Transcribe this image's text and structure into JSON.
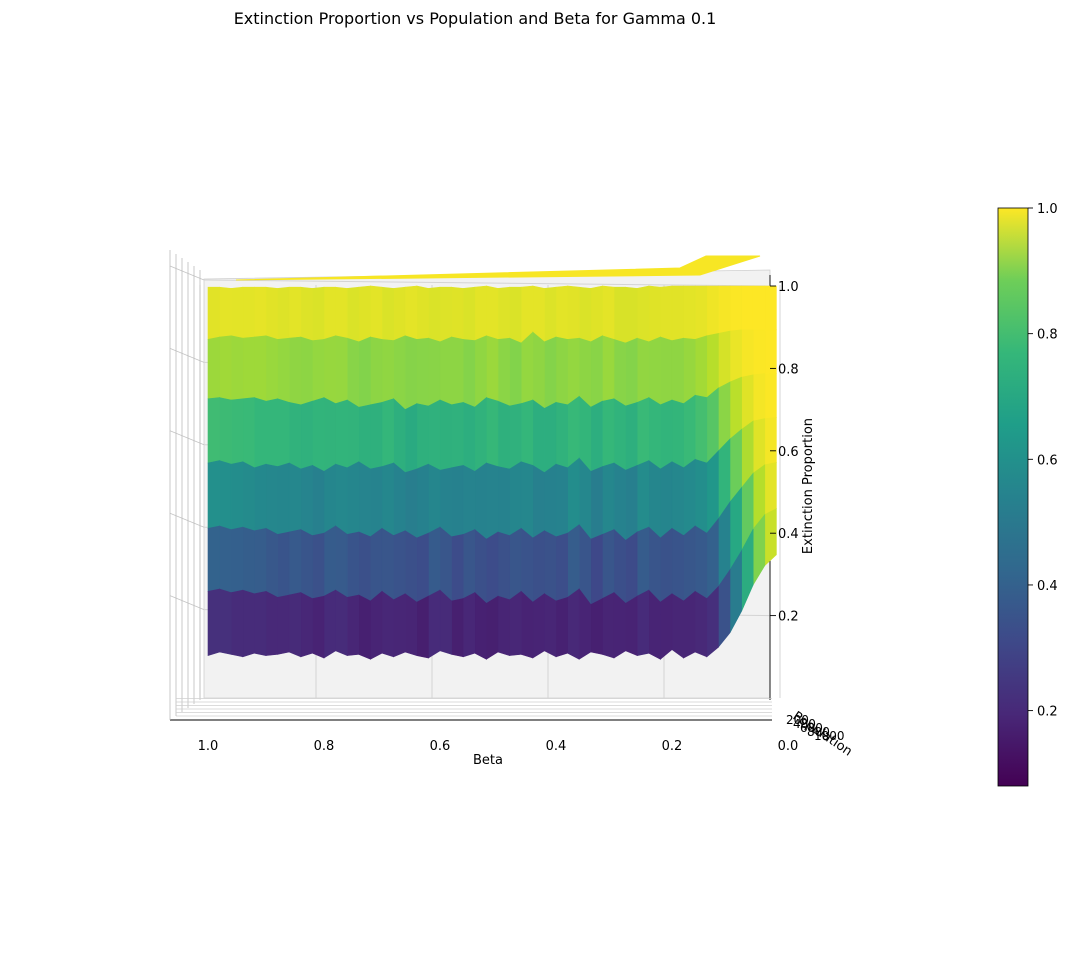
{
  "chart_data": {
    "type": "surface3d",
    "title": "Extinction Proportion vs Population and Beta for Gamma 0.1",
    "xlabel": "Beta",
    "ylabel": "Population",
    "zlabel": "Extinction Proportion",
    "x_ticks": [
      "1.0",
      "0.8",
      "0.6",
      "0.4",
      "0.2",
      "0.0"
    ],
    "y_ticks": [
      "200",
      "400",
      "600",
      "800",
      "1000"
    ],
    "z_ticks": [
      "0.2",
      "0.4",
      "0.6",
      "0.8",
      "1.0"
    ],
    "colorbar_ticks": [
      "0.2",
      "0.4",
      "0.6",
      "0.8",
      "1.0"
    ],
    "colormap": "viridis",
    "colorbar_range": [
      0.08,
      1.0
    ],
    "beta_values": [
      0.02,
      0.04,
      0.06,
      0.08,
      0.1,
      0.12,
      0.14,
      0.16,
      0.18,
      0.2,
      0.22,
      0.24,
      0.26,
      0.28,
      0.3,
      0.32,
      0.34,
      0.36,
      0.38,
      0.4,
      0.42,
      0.44,
      0.46,
      0.48,
      0.5,
      0.52,
      0.54,
      0.56,
      0.58,
      0.6,
      0.62,
      0.64,
      0.66,
      0.68,
      0.7,
      0.72,
      0.74,
      0.76,
      0.78,
      0.8,
      0.82,
      0.84,
      0.86,
      0.88,
      0.9,
      0.92,
      0.94,
      0.96,
      0.98,
      1.0
    ],
    "extinction_levels": [
      1.0,
      0.85,
      0.7,
      0.55,
      0.4,
      0.25,
      0.1
    ],
    "extinction_surface": [
      [
        1.0,
        1.0,
        1.0,
        1.0,
        1.0,
        1.0,
        1.0,
        1.0,
        1.0,
        1.0,
        0.99,
        1.0,
        0.98,
        0.99,
        0.99,
        1.0,
        0.98,
        0.99,
        1.0,
        0.99,
        0.98,
        1.0,
        0.99,
        0.99,
        0.98,
        1.0,
        0.99,
        0.98,
        0.99,
        0.99,
        0.98,
        1.0,
        0.99,
        0.98,
        0.99,
        1.0,
        0.99,
        0.98,
        0.99,
        0.99,
        0.98,
        0.99,
        0.99,
        0.98,
        0.99,
        0.99,
        0.99,
        0.98,
        0.99,
        0.99
      ],
      [
        1.0,
        1.0,
        1.0,
        1.0,
        0.99,
        0.97,
        0.95,
        0.92,
        0.93,
        0.91,
        0.94,
        0.9,
        0.93,
        0.89,
        0.92,
        0.95,
        0.9,
        0.93,
        0.92,
        0.94,
        0.9,
        0.98,
        0.89,
        0.93,
        0.92,
        0.95,
        0.91,
        0.92,
        0.94,
        0.9,
        0.93,
        0.92,
        0.95,
        0.91,
        0.92,
        0.94,
        0.9,
        0.93,
        0.95,
        0.92,
        0.91,
        0.94,
        0.93,
        0.92,
        0.95,
        0.94,
        0.93,
        0.95,
        0.94,
        0.92
      ],
      [
        1.0,
        1.0,
        0.99,
        0.97,
        0.93,
        0.88,
        0.8,
        0.82,
        0.75,
        0.78,
        0.74,
        0.8,
        0.76,
        0.73,
        0.79,
        0.77,
        0.72,
        0.81,
        0.74,
        0.76,
        0.71,
        0.78,
        0.75,
        0.73,
        0.77,
        0.8,
        0.72,
        0.76,
        0.74,
        0.78,
        0.73,
        0.75,
        0.7,
        0.79,
        0.76,
        0.74,
        0.72,
        0.78,
        0.75,
        0.8,
        0.77,
        0.74,
        0.76,
        0.79,
        0.77,
        0.8,
        0.79,
        0.78,
        0.8,
        0.79
      ],
      [
        1.0,
        0.99,
        0.97,
        0.9,
        0.82,
        0.72,
        0.62,
        0.65,
        0.58,
        0.63,
        0.57,
        0.64,
        0.6,
        0.56,
        0.62,
        0.59,
        0.55,
        0.66,
        0.58,
        0.61,
        0.54,
        0.6,
        0.63,
        0.57,
        0.59,
        0.62,
        0.55,
        0.6,
        0.58,
        0.56,
        0.61,
        0.57,
        0.54,
        0.62,
        0.59,
        0.57,
        0.63,
        0.58,
        0.61,
        0.55,
        0.6,
        0.57,
        0.62,
        0.59,
        0.61,
        0.58,
        0.63,
        0.61,
        0.64,
        0.62
      ],
      [
        0.99,
        0.97,
        0.9,
        0.78,
        0.66,
        0.52,
        0.4,
        0.46,
        0.38,
        0.44,
        0.36,
        0.45,
        0.41,
        0.34,
        0.43,
        0.39,
        0.35,
        0.47,
        0.4,
        0.37,
        0.42,
        0.36,
        0.44,
        0.38,
        0.41,
        0.35,
        0.43,
        0.39,
        0.37,
        0.45,
        0.4,
        0.36,
        0.42,
        0.38,
        0.44,
        0.37,
        0.41,
        0.39,
        0.46,
        0.4,
        0.38,
        0.43,
        0.41,
        0.39,
        0.44,
        0.42,
        0.45,
        0.43,
        0.46,
        0.44
      ],
      [
        0.97,
        0.92,
        0.8,
        0.62,
        0.46,
        0.32,
        0.22,
        0.28,
        0.2,
        0.26,
        0.19,
        0.29,
        0.24,
        0.18,
        0.27,
        0.22,
        0.17,
        0.3,
        0.23,
        0.2,
        0.26,
        0.19,
        0.28,
        0.21,
        0.24,
        0.18,
        0.27,
        0.22,
        0.2,
        0.29,
        0.24,
        0.19,
        0.26,
        0.21,
        0.28,
        0.2,
        0.25,
        0.23,
        0.29,
        0.24,
        0.22,
        0.27,
        0.25,
        0.23,
        0.28,
        0.26,
        0.29,
        0.27,
        0.3,
        0.28
      ],
      [
        0.95,
        0.86,
        0.7,
        0.48,
        0.3,
        0.18,
        0.1,
        0.14,
        0.09,
        0.16,
        0.08,
        0.13,
        0.11,
        0.15,
        0.09,
        0.12,
        0.14,
        0.08,
        0.13,
        0.1,
        0.15,
        0.09,
        0.12,
        0.11,
        0.14,
        0.08,
        0.13,
        0.1,
        0.12,
        0.15,
        0.09,
        0.11,
        0.14,
        0.1,
        0.13,
        0.08,
        0.12,
        0.11,
        0.15,
        0.09,
        0.13,
        0.1,
        0.14,
        0.12,
        0.11,
        0.13,
        0.1,
        0.12,
        0.14,
        0.11
      ]
    ]
  }
}
